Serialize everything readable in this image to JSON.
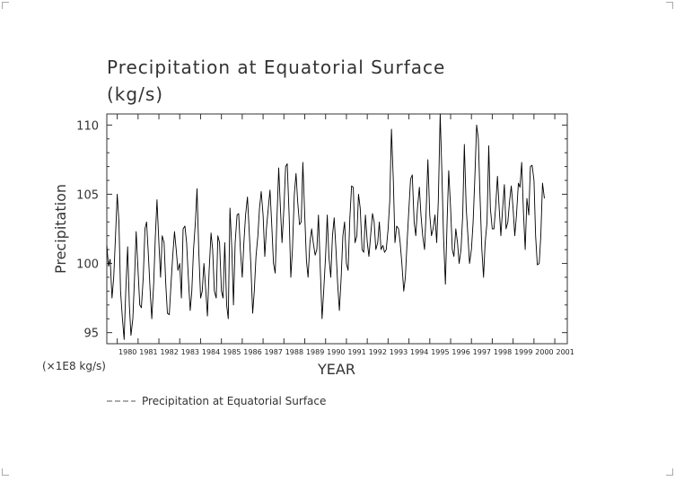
{
  "chart_data": {
    "type": "line",
    "title": "Precipitation at Equatorial Surface",
    "subtitle": "(kg/s)",
    "xlabel": "YEAR",
    "ylabel": "Precipitation",
    "scale_note": "(×1E8 kg/s)",
    "xlim": [
      1979.5,
      2001.6
    ],
    "ylim": [
      94.2,
      110.8
    ],
    "yticks": [
      95,
      100,
      105,
      110
    ],
    "xticks": [
      "1980",
      "1981",
      "1982",
      "1983",
      "1984",
      "1985",
      "1986",
      "1987",
      "1988",
      "1989",
      "1990",
      "1991",
      "1992",
      "1993",
      "1994",
      "1995",
      "1996",
      "1997",
      "1998",
      "1999",
      "2000",
      "2001"
    ],
    "grid": false,
    "legend_position": "bottom-left",
    "series": [
      {
        "name": "Precipitation at Equatorial Surface",
        "color": "#000000",
        "points": [
          [
            1979.5,
            101.3
          ],
          [
            1979.58,
            99.8
          ],
          [
            1979.66,
            100.3
          ],
          [
            1979.75,
            97.5
          ],
          [
            1979.83,
            99.0
          ],
          [
            1979.92,
            102.0
          ],
          [
            1980.0,
            105.0
          ],
          [
            1980.08,
            103.0
          ],
          [
            1980.16,
            98.0
          ],
          [
            1980.25,
            96.0
          ],
          [
            1980.33,
            94.5
          ],
          [
            1980.41,
            98.0
          ],
          [
            1980.5,
            101.2
          ],
          [
            1980.58,
            97.0
          ],
          [
            1980.66,
            94.8
          ],
          [
            1980.75,
            96.0
          ],
          [
            1980.83,
            99.0
          ],
          [
            1980.91,
            102.3
          ],
          [
            1981.0,
            99.5
          ],
          [
            1981.08,
            97.0
          ],
          [
            1981.16,
            96.8
          ],
          [
            1981.25,
            99.0
          ],
          [
            1981.33,
            102.5
          ],
          [
            1981.41,
            103.0
          ],
          [
            1981.5,
            100.5
          ],
          [
            1981.58,
            98.0
          ],
          [
            1981.66,
            96.0
          ],
          [
            1981.75,
            98.5
          ],
          [
            1981.83,
            102.0
          ],
          [
            1981.91,
            104.6
          ],
          [
            1982.0,
            101.5
          ],
          [
            1982.08,
            99.0
          ],
          [
            1982.16,
            102.0
          ],
          [
            1982.25,
            101.5
          ],
          [
            1982.33,
            98.5
          ],
          [
            1982.41,
            96.4
          ],
          [
            1982.5,
            96.3
          ],
          [
            1982.58,
            98.5
          ],
          [
            1982.66,
            100.5
          ],
          [
            1982.75,
            102.3
          ],
          [
            1982.83,
            101.0
          ],
          [
            1982.91,
            99.5
          ],
          [
            1983.0,
            100.0
          ],
          [
            1983.08,
            97.5
          ],
          [
            1983.16,
            102.5
          ],
          [
            1983.25,
            102.7
          ],
          [
            1983.33,
            101.5
          ],
          [
            1983.41,
            99.0
          ],
          [
            1983.5,
            96.6
          ],
          [
            1983.58,
            98.0
          ],
          [
            1983.66,
            101.0
          ],
          [
            1983.75,
            103.0
          ],
          [
            1983.83,
            105.4
          ],
          [
            1983.91,
            101.0
          ],
          [
            1984.0,
            97.5
          ],
          [
            1984.08,
            98.0
          ],
          [
            1984.16,
            100.0
          ],
          [
            1984.25,
            98.0
          ],
          [
            1984.33,
            96.2
          ],
          [
            1984.41,
            99.5
          ],
          [
            1984.5,
            102.2
          ],
          [
            1984.58,
            101.0
          ],
          [
            1984.66,
            98.0
          ],
          [
            1984.75,
            97.5
          ],
          [
            1984.83,
            102.0
          ],
          [
            1984.91,
            101.5
          ],
          [
            1985.0,
            98.0
          ],
          [
            1985.08,
            97.5
          ],
          [
            1985.16,
            101.5
          ],
          [
            1985.25,
            97.0
          ],
          [
            1985.33,
            96.0
          ],
          [
            1985.41,
            104.0
          ],
          [
            1985.5,
            101.0
          ],
          [
            1985.58,
            97.0
          ],
          [
            1985.66,
            101.5
          ],
          [
            1985.75,
            103.5
          ],
          [
            1985.83,
            103.6
          ],
          [
            1985.91,
            101.0
          ],
          [
            1986.0,
            99.0
          ],
          [
            1986.08,
            101.5
          ],
          [
            1986.16,
            103.5
          ],
          [
            1986.25,
            104.8
          ],
          [
            1986.33,
            102.5
          ],
          [
            1986.41,
            100.0
          ],
          [
            1986.5,
            96.4
          ],
          [
            1986.58,
            98.0
          ],
          [
            1986.66,
            100.5
          ],
          [
            1986.75,
            102.0
          ],
          [
            1986.83,
            104.0
          ],
          [
            1986.91,
            105.2
          ],
          [
            1987.0,
            103.5
          ],
          [
            1987.08,
            100.5
          ],
          [
            1987.16,
            102.5
          ],
          [
            1987.25,
            104.0
          ],
          [
            1987.33,
            105.3
          ],
          [
            1987.41,
            103.0
          ],
          [
            1987.5,
            100.0
          ],
          [
            1987.58,
            99.3
          ],
          [
            1987.66,
            103.0
          ],
          [
            1987.75,
            106.9
          ],
          [
            1987.83,
            104.0
          ],
          [
            1987.91,
            101.5
          ],
          [
            1988.0,
            104.0
          ],
          [
            1988.08,
            107.0
          ],
          [
            1988.16,
            107.2
          ],
          [
            1988.25,
            103.5
          ],
          [
            1988.33,
            99.0
          ],
          [
            1988.41,
            101.0
          ],
          [
            1988.5,
            105.0
          ],
          [
            1988.58,
            106.5
          ],
          [
            1988.66,
            104.5
          ],
          [
            1988.75,
            102.8
          ],
          [
            1988.83,
            103.0
          ],
          [
            1988.91,
            107.3
          ],
          [
            1989.0,
            103.5
          ],
          [
            1989.08,
            100.2
          ],
          [
            1989.16,
            99.0
          ],
          [
            1989.25,
            101.5
          ],
          [
            1989.33,
            102.5
          ],
          [
            1989.41,
            101.5
          ],
          [
            1989.5,
            100.6
          ],
          [
            1989.58,
            101.0
          ],
          [
            1989.66,
            103.5
          ],
          [
            1989.75,
            99.5
          ],
          [
            1989.83,
            96.0
          ],
          [
            1989.91,
            98.0
          ],
          [
            1990.0,
            100.5
          ],
          [
            1990.08,
            103.5
          ],
          [
            1990.16,
            100.5
          ],
          [
            1990.25,
            99.0
          ],
          [
            1990.33,
            102.0
          ],
          [
            1990.41,
            103.3
          ],
          [
            1990.5,
            101.0
          ],
          [
            1990.58,
            98.5
          ],
          [
            1990.66,
            96.6
          ],
          [
            1990.75,
            99.0
          ],
          [
            1990.83,
            102.0
          ],
          [
            1990.91,
            103.0
          ],
          [
            1991.0,
            100.0
          ],
          [
            1991.08,
            99.5
          ],
          [
            1991.16,
            103.2
          ],
          [
            1991.25,
            105.6
          ],
          [
            1991.33,
            105.5
          ],
          [
            1991.41,
            101.5
          ],
          [
            1991.5,
            102.0
          ],
          [
            1991.58,
            105.0
          ],
          [
            1991.66,
            104.0
          ],
          [
            1991.75,
            101.0
          ],
          [
            1991.83,
            100.8
          ],
          [
            1991.91,
            103.5
          ],
          [
            1992.0,
            101.5
          ],
          [
            1992.08,
            100.5
          ],
          [
            1992.16,
            102.0
          ],
          [
            1992.25,
            103.6
          ],
          [
            1992.33,
            103.0
          ],
          [
            1992.41,
            101.0
          ],
          [
            1992.5,
            101.5
          ],
          [
            1992.58,
            103.0
          ],
          [
            1992.66,
            101.0
          ],
          [
            1992.75,
            101.3
          ],
          [
            1992.83,
            100.8
          ],
          [
            1992.91,
            101.0
          ],
          [
            1993.0,
            102.5
          ],
          [
            1993.08,
            104.5
          ],
          [
            1993.16,
            109.7
          ],
          [
            1993.25,
            106.0
          ],
          [
            1993.33,
            101.5
          ],
          [
            1993.41,
            102.7
          ],
          [
            1993.5,
            102.5
          ],
          [
            1993.58,
            101.5
          ],
          [
            1993.66,
            100.0
          ],
          [
            1993.75,
            98.0
          ],
          [
            1993.83,
            99.0
          ],
          [
            1993.91,
            101.5
          ],
          [
            1994.0,
            104.0
          ],
          [
            1994.08,
            106.1
          ],
          [
            1994.16,
            106.4
          ],
          [
            1994.25,
            103.0
          ],
          [
            1994.33,
            102.0
          ],
          [
            1994.41,
            104.0
          ],
          [
            1994.5,
            105.5
          ],
          [
            1994.58,
            103.5
          ],
          [
            1994.66,
            102.0
          ],
          [
            1994.75,
            101.0
          ],
          [
            1994.83,
            104.0
          ],
          [
            1994.91,
            107.5
          ],
          [
            1995.0,
            103.5
          ],
          [
            1995.08,
            102.0
          ],
          [
            1995.16,
            102.5
          ],
          [
            1995.25,
            103.5
          ],
          [
            1995.33,
            101.5
          ],
          [
            1995.41,
            104.5
          ],
          [
            1995.5,
            110.8
          ],
          [
            1995.58,
            106.5
          ],
          [
            1995.66,
            102.0
          ],
          [
            1995.75,
            98.5
          ],
          [
            1995.83,
            103.0
          ],
          [
            1995.91,
            106.7
          ],
          [
            1996.0,
            104.0
          ],
          [
            1996.08,
            101.0
          ],
          [
            1996.16,
            100.5
          ],
          [
            1996.25,
            102.5
          ],
          [
            1996.33,
            101.5
          ],
          [
            1996.41,
            100.0
          ],
          [
            1996.5,
            101.0
          ],
          [
            1996.58,
            103.5
          ],
          [
            1996.66,
            108.6
          ],
          [
            1996.75,
            104.0
          ],
          [
            1996.83,
            102.0
          ],
          [
            1996.91,
            100.0
          ],
          [
            1997.0,
            101.0
          ],
          [
            1997.08,
            103.0
          ],
          [
            1997.16,
            106.0
          ],
          [
            1997.25,
            110.0
          ],
          [
            1997.33,
            109.0
          ],
          [
            1997.41,
            105.0
          ],
          [
            1997.5,
            101.0
          ],
          [
            1997.58,
            99.0
          ],
          [
            1997.66,
            101.5
          ],
          [
            1997.75,
            103.0
          ],
          [
            1997.83,
            108.5
          ],
          [
            1997.91,
            104.0
          ],
          [
            1998.0,
            102.5
          ],
          [
            1998.08,
            102.5
          ],
          [
            1998.16,
            104.0
          ],
          [
            1998.25,
            106.3
          ],
          [
            1998.33,
            104.0
          ],
          [
            1998.41,
            102.0
          ],
          [
            1998.5,
            104.0
          ],
          [
            1998.58,
            105.7
          ],
          [
            1998.66,
            102.5
          ],
          [
            1998.75,
            103.0
          ],
          [
            1998.83,
            104.5
          ],
          [
            1998.91,
            105.6
          ],
          [
            1999.0,
            104.0
          ],
          [
            1999.08,
            102.0
          ],
          [
            1999.16,
            103.5
          ],
          [
            1999.25,
            105.8
          ],
          [
            1999.33,
            105.5
          ],
          [
            1999.41,
            107.3
          ],
          [
            1999.5,
            103.5
          ],
          [
            1999.58,
            101.0
          ],
          [
            1999.66,
            104.7
          ],
          [
            1999.75,
            103.5
          ],
          [
            1999.83,
            107.0
          ],
          [
            1999.91,
            107.1
          ],
          [
            2000.0,
            106.0
          ],
          [
            2000.08,
            102.0
          ],
          [
            2000.16,
            99.9
          ],
          [
            2000.25,
            100.0
          ],
          [
            2000.33,
            102.0
          ],
          [
            2000.41,
            105.8
          ],
          [
            2000.5,
            104.7
          ]
        ]
      }
    ]
  }
}
